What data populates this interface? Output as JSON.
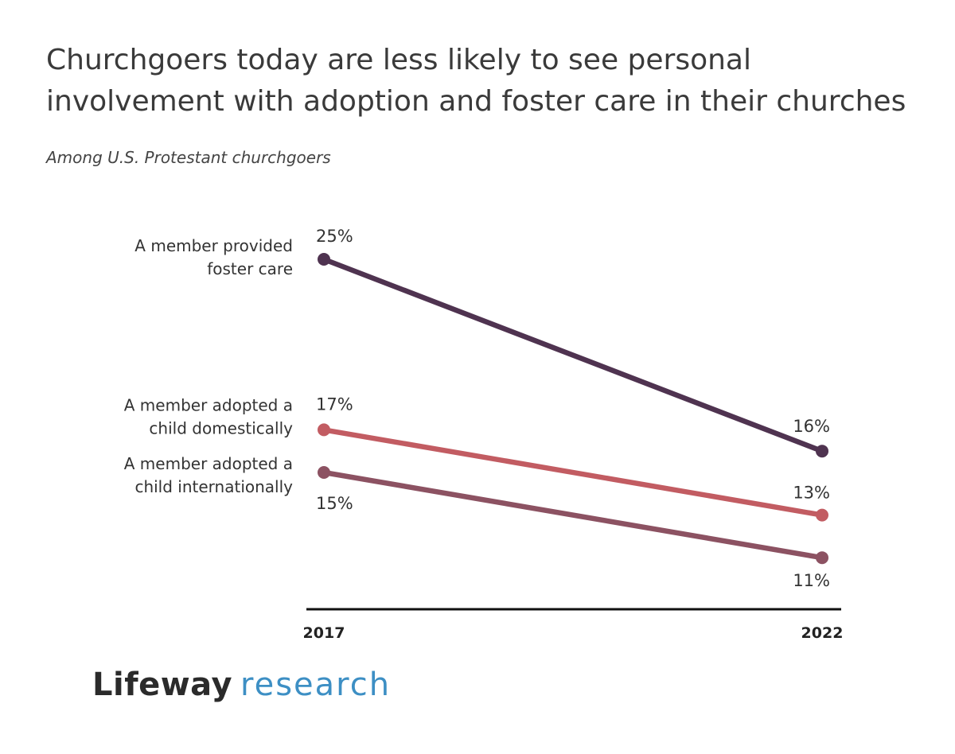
{
  "header": {
    "title_line1": "Churchgoers today are less likely to see personal",
    "title_line2": "involvement with adoption and foster care in their churches",
    "subtitle": "Among U.S. Protestant churchgoers"
  },
  "logo": {
    "part1": "Lifeway",
    "part2": "research"
  },
  "chart_data": {
    "type": "line",
    "title": "Churchgoers today are less likely to see personal involvement with adoption and foster care in their churches",
    "subtitle": "Among U.S. Protestant churchgoers",
    "x": [
      "2017",
      "2022"
    ],
    "xlabel": "",
    "ylabel": "",
    "ylim": [
      0,
      30
    ],
    "grid": false,
    "series": [
      {
        "name": "A member provided foster care",
        "name_lines": [
          "A member provided",
          "foster care"
        ],
        "values": [
          25,
          16
        ],
        "labels": [
          "25%",
          "16%"
        ],
        "color": "#4f3350"
      },
      {
        "name": "A member adopted a child domestically",
        "name_lines": [
          "A member adopted a",
          "child domestically"
        ],
        "values": [
          17,
          13
        ],
        "labels": [
          "17%",
          "13%"
        ],
        "color": "#c25c62"
      },
      {
        "name": "A member adopted a child internationally",
        "name_lines": [
          "A member adopted a",
          "child internationally"
        ],
        "values": [
          15,
          11
        ],
        "labels": [
          "15%",
          "11%"
        ],
        "color": "#8c5262"
      }
    ]
  }
}
